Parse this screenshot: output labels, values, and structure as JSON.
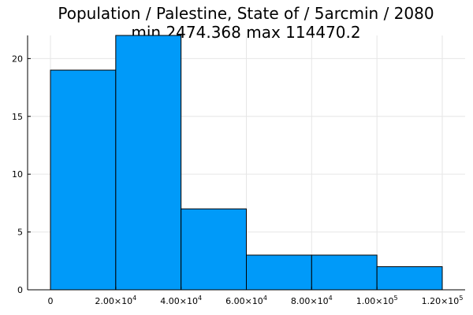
{
  "chart_data": {
    "type": "bar",
    "title_line1": "Population / Palestine, State of / 5arcmin / 2080",
    "title_line2": "min 2474.368  max 114470.2",
    "bin_edges": [
      0,
      20000,
      40000,
      60000,
      80000,
      100000,
      120000
    ],
    "values": [
      19,
      22,
      7,
      3,
      3,
      2
    ],
    "xlim": [
      -7000,
      127000
    ],
    "ylim": [
      0,
      22
    ],
    "x_ticks": [
      {
        "value": 0,
        "label": "0",
        "sup": ""
      },
      {
        "value": 20000,
        "label": "2.00×10",
        "sup": "4"
      },
      {
        "value": 40000,
        "label": "4.00×10",
        "sup": "4"
      },
      {
        "value": 60000,
        "label": "6.00×10",
        "sup": "4"
      },
      {
        "value": 80000,
        "label": "8.00×10",
        "sup": "4"
      },
      {
        "value": 100000,
        "label": "1.00×10",
        "sup": "5"
      },
      {
        "value": 120000,
        "label": "1.20×10",
        "sup": "5"
      }
    ],
    "y_ticks": [
      {
        "value": 0,
        "label": "0"
      },
      {
        "value": 5,
        "label": "5"
      },
      {
        "value": 10,
        "label": "10"
      },
      {
        "value": 15,
        "label": "15"
      },
      {
        "value": 20,
        "label": "20"
      }
    ],
    "bar_color": "#009af9",
    "grid": true,
    "legend": "none"
  }
}
